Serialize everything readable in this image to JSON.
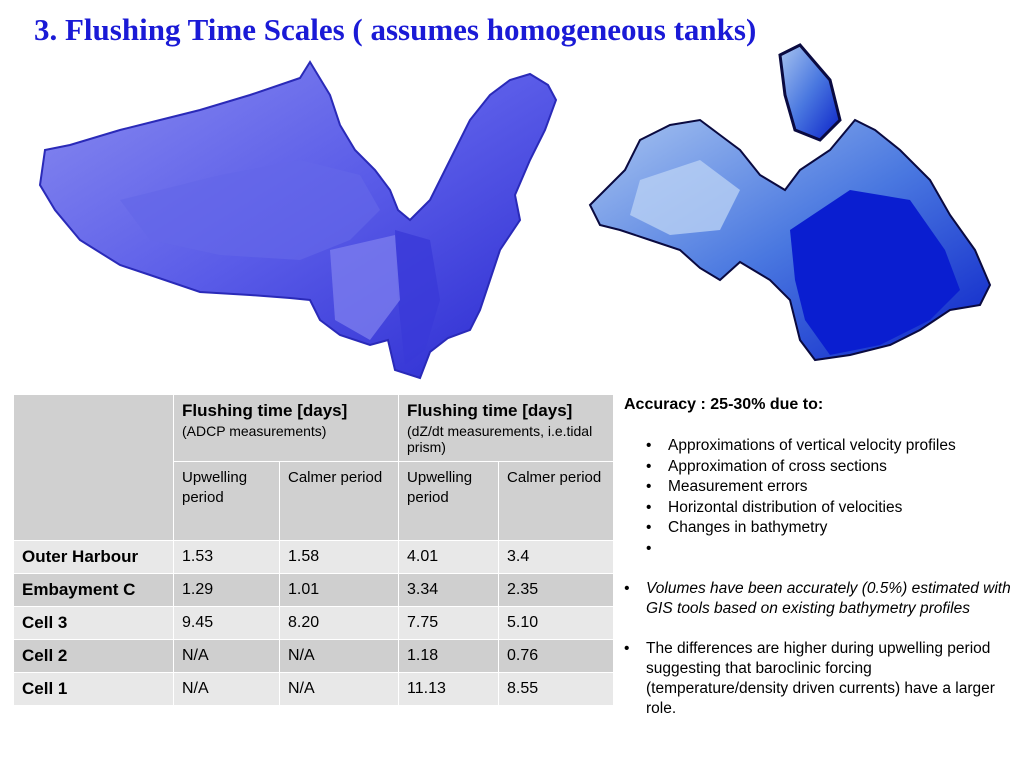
{
  "title": "3. Flushing Time Scales ( assumes homogeneous tanks)",
  "table": {
    "col_group_1": {
      "title": "Flushing time [days]",
      "subtitle": "(ADCP measurements)"
    },
    "col_group_2": {
      "title": "Flushing time [days]",
      "subtitle": "(dZ/dt measurements, i.e.tidal prism)"
    },
    "sub_headers": [
      "Upwelling period",
      "Calmer period",
      "Upwelling period",
      "Calmer period"
    ],
    "rows": [
      {
        "name": "Outer Harbour",
        "values": [
          "1.53",
          "1.58",
          "4.01",
          "3.4"
        ]
      },
      {
        "name": "Embayment C",
        "values": [
          "1.29",
          "1.01",
          "3.34",
          "2.35"
        ]
      },
      {
        "name": "Cell 3",
        "values": [
          "9.45",
          "8.20",
          "7.75",
          "5.10"
        ]
      },
      {
        "name": "Cell 2",
        "values": [
          "N/A",
          "N/A",
          "1.18",
          "0.76"
        ]
      },
      {
        "name": "Cell 1",
        "values": [
          "N/A",
          "N/A",
          "11.13",
          "8.55"
        ]
      }
    ]
  },
  "notes": {
    "accuracy": "Accuracy : 25-30% due to:",
    "reasons": [
      "Approximations of vertical velocity profiles",
      "Approximation of cross sections",
      "Measurement errors",
      "Horizontal distribution of velocities",
      "Changes in bathymetry",
      ""
    ],
    "volumes": "Volumes have been accurately (0.5%) estimated with GIS tools based on existing bathymetry profiles",
    "differences": "The differences are higher during upwelling period suggesting that baroclinic forcing (temperature/density driven currents) have a larger role."
  }
}
